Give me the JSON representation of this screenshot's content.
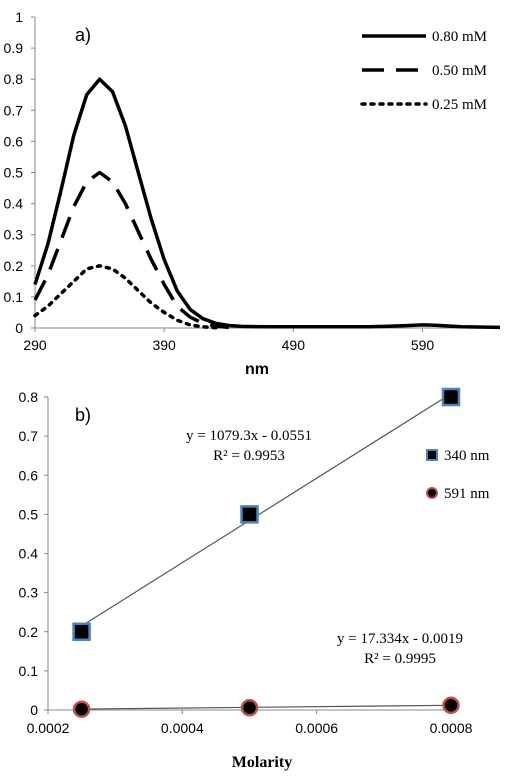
{
  "chart_data": [
    {
      "type": "line",
      "panel_label": "a)",
      "xlabel": "nm",
      "ylabel": "",
      "xlim": [
        290,
        650
      ],
      "ylim": [
        0,
        1
      ],
      "xticks": [
        290,
        390,
        490,
        590
      ],
      "yticks": [
        0,
        0.1,
        0.2,
        0.3,
        0.4,
        0.5,
        0.6,
        0.7,
        0.8,
        0.9,
        1
      ],
      "ytick_labels": [
        "0",
        "0.1",
        "0.2",
        "0.3",
        "0.4",
        "0.5",
        "0.6",
        "0.7",
        "0.8",
        "0.9",
        "1"
      ],
      "xtick_labels": [
        "290",
        "390",
        "490",
        "590"
      ],
      "grid": false,
      "legend_position": "top-right",
      "series": [
        {
          "name": "0.80 mM",
          "style": "solid",
          "x": [
            290,
            300,
            310,
            320,
            330,
            340,
            350,
            360,
            370,
            380,
            390,
            400,
            410,
            420,
            430,
            440,
            450,
            470,
            500,
            550,
            580,
            590,
            600,
            620,
            650
          ],
          "y": [
            0.14,
            0.27,
            0.44,
            0.62,
            0.75,
            0.8,
            0.76,
            0.65,
            0.5,
            0.35,
            0.22,
            0.12,
            0.06,
            0.03,
            0.015,
            0.008,
            0.005,
            0.004,
            0.004,
            0.004,
            0.008,
            0.01,
            0.009,
            0.004,
            0.002
          ]
        },
        {
          "name": "0.50 mM",
          "style": "dashed",
          "x": [
            290,
            300,
            310,
            320,
            330,
            340,
            350,
            360,
            370,
            380,
            390,
            400,
            410,
            420,
            430,
            440
          ],
          "y": [
            0.09,
            0.17,
            0.28,
            0.39,
            0.47,
            0.5,
            0.47,
            0.4,
            0.31,
            0.22,
            0.14,
            0.07,
            0.035,
            0.015,
            0.006,
            0.002
          ]
        },
        {
          "name": "0.25 mM",
          "style": "dotted",
          "x": [
            290,
            300,
            310,
            320,
            330,
            340,
            350,
            360,
            370,
            380,
            390,
            400,
            410,
            420,
            430
          ],
          "y": [
            0.04,
            0.07,
            0.11,
            0.15,
            0.19,
            0.2,
            0.19,
            0.16,
            0.12,
            0.08,
            0.05,
            0.025,
            0.01,
            0.004,
            0.001
          ]
        }
      ]
    },
    {
      "type": "scatter",
      "panel_label": "b)",
      "xlabel": "Molarity",
      "ylabel": "",
      "xlim": [
        0.0002,
        0.0008
      ],
      "ylim": [
        0,
        0.8
      ],
      "xticks": [
        0.0002,
        0.0004,
        0.0006,
        0.0008
      ],
      "xtick_labels": [
        "0.0002",
        "0.0004",
        "0.0006",
        "0.0008"
      ],
      "yticks": [
        0,
        0.1,
        0.2,
        0.3,
        0.4,
        0.5,
        0.6,
        0.7,
        0.8
      ],
      "ytick_labels": [
        "0",
        "0.1",
        "0.2",
        "0.3",
        "0.4",
        "0.5",
        "0.6",
        "0.7",
        "0.8"
      ],
      "grid": false,
      "legend_position": "right",
      "series": [
        {
          "name": "340 nm",
          "marker": "square",
          "fill": "#000000",
          "edge": "#4f81bd",
          "x": [
            0.00025,
            0.0005,
            0.0008
          ],
          "y": [
            0.2,
            0.5,
            0.8
          ],
          "trendline": {
            "slope": 1079.3,
            "intercept": -0.0551
          },
          "equation": "y = 1079.3x - 0.0551",
          "r2": "R² = 0.9953"
        },
        {
          "name": "591 nm",
          "marker": "circle",
          "fill": "#000000",
          "edge": "#c0504d",
          "x": [
            0.00025,
            0.0005,
            0.0008
          ],
          "y": [
            0.002,
            0.006,
            0.012
          ],
          "trendline": {
            "slope": 17.334,
            "intercept": -0.0019
          },
          "equation": "y = 17.334x - 0.0019",
          "r2": "R² = 0.9995"
        }
      ]
    }
  ]
}
